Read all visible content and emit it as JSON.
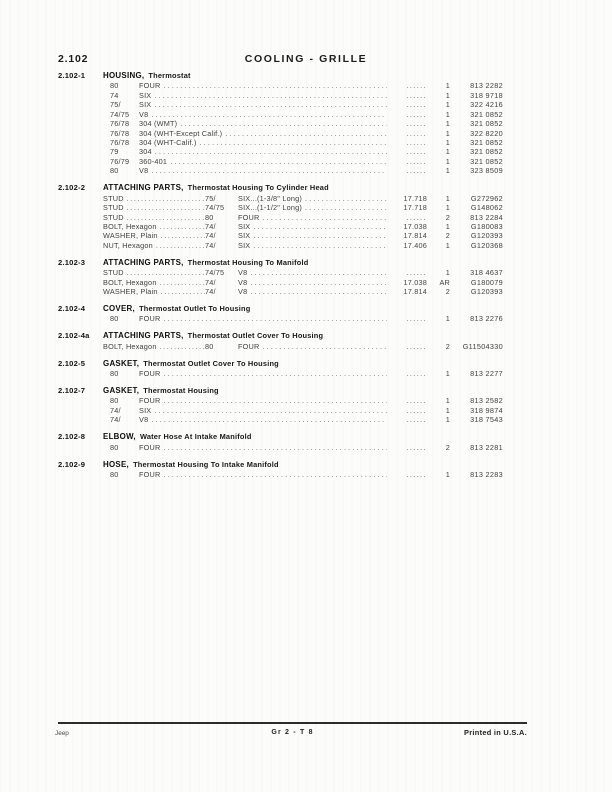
{
  "header": {
    "section_number": "2.102",
    "title": "COOLING - GRILLE"
  },
  "footer": {
    "left": "Jeep",
    "center": "Gr 2 - T 8",
    "right": "Printed in U.S.A."
  },
  "sections": [
    {
      "id": "2.102-1",
      "term": "HOUSING,",
      "title": "Thermostat",
      "rows": [
        {
          "years": "80",
          "desc": "FOUR",
          "ref": "......",
          "qty": "1",
          "num": "813 2282"
        },
        {
          "years": "74",
          "desc": "SIX",
          "ref": "......",
          "qty": "1",
          "num": "318 9718"
        },
        {
          "years": "75/",
          "desc": "SIX",
          "ref": "......",
          "qty": "1",
          "num": "322 4216"
        },
        {
          "years": "74/75",
          "desc": "V8",
          "ref": "......",
          "qty": "1",
          "num": "321 0852"
        },
        {
          "years": "76/78",
          "desc": "304 (WMT)",
          "ref": "......",
          "qty": "1",
          "num": "321 0852"
        },
        {
          "years": "76/78",
          "desc": "304 (WHT-Except Calif.)",
          "ref": "......",
          "qty": "1",
          "num": "322 8220"
        },
        {
          "years": "76/78",
          "desc": "304 (WHT-Calif.)",
          "ref": "......",
          "qty": "1",
          "num": "321 0852"
        },
        {
          "years": "79",
          "desc": "304",
          "ref": "......",
          "qty": "1",
          "num": "321 0852"
        },
        {
          "years": "76/79",
          "desc": "360-401",
          "ref": "......",
          "qty": "1",
          "num": "321 0852"
        },
        {
          "years": "80",
          "desc": "V8",
          "ref": "......",
          "qty": "1",
          "num": "323 8509"
        }
      ]
    },
    {
      "id": "2.102-2",
      "term": "ATTACHING PARTS,",
      "title": "Thermostat Housing To Cylinder Head",
      "rows": [
        {
          "part": "STUD",
          "years": "75/",
          "desc": "SIX...(1-3/8\" Long)",
          "ref": "17.718",
          "qty": "1",
          "num": "G272962"
        },
        {
          "part": "STUD",
          "years": "74/75",
          "desc": "SIX...(1-1/2\" Long)",
          "ref": "17.718",
          "qty": "1",
          "num": "G148062"
        },
        {
          "part": "STUD",
          "years": "80",
          "desc": "FOUR",
          "ref": "......",
          "qty": "2",
          "num": "813 2284"
        },
        {
          "part": "BOLT, Hexagon",
          "years": "74/",
          "desc": "SIX",
          "ref": "17.038",
          "qty": "1",
          "num": "G180083"
        },
        {
          "part": "WASHER, Plain",
          "years": "74/",
          "desc": "SIX",
          "ref": "17.814",
          "qty": "2",
          "num": "G120393"
        },
        {
          "part": "NUT, Hexagon",
          "years": "74/",
          "desc": "SIX",
          "ref": "17.406",
          "qty": "1",
          "num": "G120368"
        }
      ]
    },
    {
      "id": "2.102-3",
      "term": "ATTACHING PARTS,",
      "title": "Thermostat Housing To Manifold",
      "rows": [
        {
          "part": "STUD",
          "years": "74/75",
          "desc": "V8",
          "ref": "......",
          "qty": "1",
          "num": "318 4637"
        },
        {
          "part": "BOLT, Hexagon",
          "years": "74/",
          "desc": "V8",
          "ref": "17.038",
          "qty": "AR",
          "num": "G180079"
        },
        {
          "part": "WASHER, Plain",
          "years": "74/",
          "desc": "V8",
          "ref": "17.814",
          "qty": "2",
          "num": "G120393"
        }
      ]
    },
    {
      "id": "2.102-4",
      "term": "COVER,",
      "title": "Thermostat Outlet To Housing",
      "rows": [
        {
          "years": "80",
          "desc": "FOUR",
          "ref": "......",
          "qty": "1",
          "num": "813 2276"
        }
      ]
    },
    {
      "id": "2.102-4a",
      "term": "ATTACHING PARTS,",
      "title": "Thermostat Outlet Cover To Housing",
      "rows": [
        {
          "part": "BOLT, Hexagon",
          "years": "80",
          "desc": "FOUR",
          "ref": "......",
          "qty": "2",
          "num": "G11504330"
        }
      ]
    },
    {
      "id": "2.102-5",
      "term": "GASKET,",
      "title": "Thermostat Outlet Cover To Housing",
      "rows": [
        {
          "years": "80",
          "desc": "FOUR",
          "ref": "......",
          "qty": "1",
          "num": "813 2277"
        }
      ]
    },
    {
      "id": "2.102-7",
      "term": "GASKET,",
      "title": "Thermostat Housing",
      "rows": [
        {
          "years": "80",
          "desc": "FOUR",
          "ref": "......",
          "qty": "1",
          "num": "813 2582"
        },
        {
          "years": "74/",
          "desc": "SIX",
          "ref": "......",
          "qty": "1",
          "num": "318 9874"
        },
        {
          "years": "74/",
          "desc": "V8",
          "ref": "......",
          "qty": "1",
          "num": "318 7543"
        }
      ]
    },
    {
      "id": "2.102-8",
      "term": "ELBOW,",
      "title": "Water Hose At Intake Manifold",
      "rows": [
        {
          "years": "80",
          "desc": "FOUR",
          "ref": "......",
          "qty": "2",
          "num": "813 2281"
        }
      ]
    },
    {
      "id": "2.102-9",
      "term": "HOSE,",
      "title": "Thermostat Housing To Intake Manifold",
      "rows": [
        {
          "years": "80",
          "desc": "FOUR",
          "ref": "......",
          "qty": "1",
          "num": "813 2283"
        }
      ]
    }
  ]
}
